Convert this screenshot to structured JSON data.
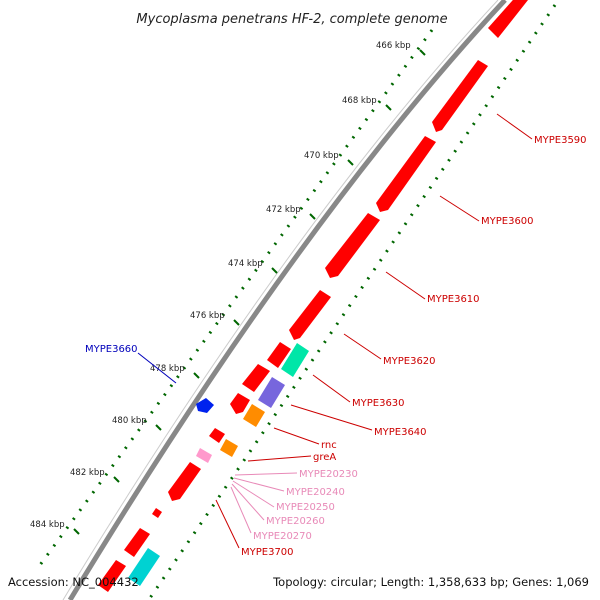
{
  "title": "Mycoplasma penetrans HF-2, complete genome",
  "footer": {
    "accession": "Accession: NC_004432",
    "topology": "Topology: circular; Length: 1,358,633 bp; Genes: 1,069"
  },
  "ticks": [
    "466 kbp",
    "468 kbp",
    "470 kbp",
    "472 kbp",
    "474 kbp",
    "476 kbp",
    "478 kbp",
    "480 kbp",
    "482 kbp",
    "484 kbp"
  ],
  "genes": [
    {
      "name": "MYPE3590",
      "color": "#cc0000"
    },
    {
      "name": "MYPE3600",
      "color": "#cc0000"
    },
    {
      "name": "MYPE3610",
      "color": "#cc0000"
    },
    {
      "name": "MYPE3620",
      "color": "#cc0000"
    },
    {
      "name": "MYPE3630",
      "color": "#cc0000"
    },
    {
      "name": "MYPE3640",
      "color": "#cc0000"
    },
    {
      "name": "rnc",
      "color": "#cc0000"
    },
    {
      "name": "greA",
      "color": "#cc0000"
    },
    {
      "name": "MYPE20230",
      "color": "#e88ab8"
    },
    {
      "name": "MYPE20240",
      "color": "#e88ab8"
    },
    {
      "name": "MYPE20250",
      "color": "#e88ab8"
    },
    {
      "name": "MYPE20260",
      "color": "#e88ab8"
    },
    {
      "name": "MYPE20270",
      "color": "#e88ab8"
    },
    {
      "name": "MYPE3700",
      "color": "#cc0000"
    },
    {
      "name": "MYPE3660",
      "color": "#0000bb"
    }
  ],
  "colors": {
    "cds": "#ff0000",
    "trna": "#ff99cc",
    "rrna": "#00e6a8",
    "misc": "#ff8c00",
    "purple": "#7766dd",
    "cyan": "#00d2d2",
    "blue": "#0022ee",
    "gc_dot": "#006600",
    "backbone": "#888888"
  }
}
